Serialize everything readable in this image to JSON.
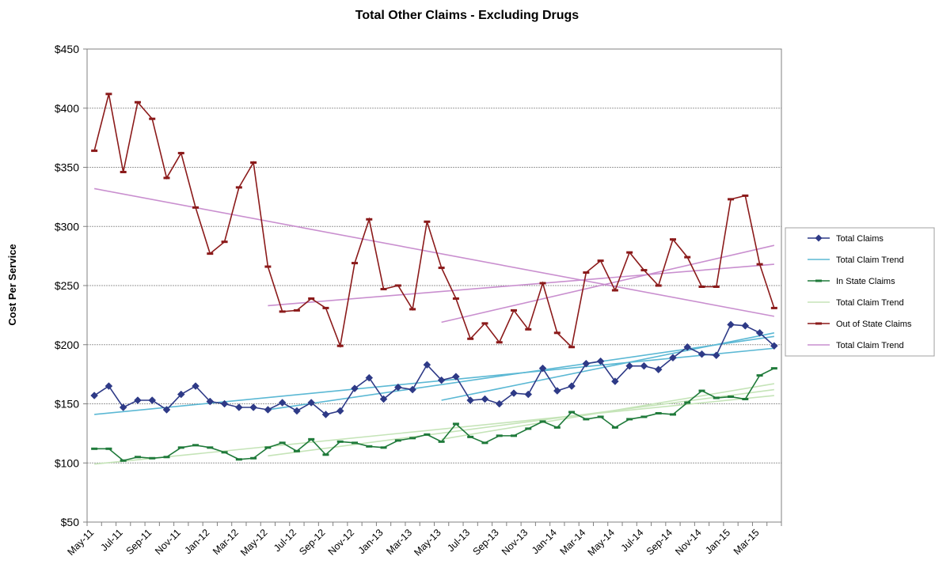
{
  "chart_data": {
    "type": "line",
    "title": "Total Other Claims - Excluding Drugs",
    "ylabel": "Cost Per Service",
    "xlabel": "",
    "ylim": [
      50,
      450
    ],
    "yticks": [
      "$450",
      "$400",
      "$350",
      "$300",
      "$250",
      "$200",
      "$150",
      "$100",
      "$50"
    ],
    "ytick_values": [
      450,
      400,
      350,
      300,
      250,
      200,
      150,
      100,
      50
    ],
    "grid": "horizontal",
    "legend_position": "right",
    "x": [
      "May-11",
      "Jun-11",
      "Jul-11",
      "Aug-11",
      "Sep-11",
      "Oct-11",
      "Nov-11",
      "Dec-11",
      "Jan-12",
      "Feb-12",
      "Mar-12",
      "Apr-12",
      "May-12",
      "Jun-12",
      "Jul-12",
      "Aug-12",
      "Sep-12",
      "Oct-12",
      "Nov-12",
      "Dec-12",
      "Jan-13",
      "Feb-13",
      "Mar-13",
      "Apr-13",
      "May-13",
      "Jun-13",
      "Jul-13",
      "Aug-13",
      "Sep-13",
      "Oct-13",
      "Nov-13",
      "Dec-13",
      "Jan-14",
      "Feb-14",
      "Mar-14",
      "Apr-14",
      "May-14",
      "Jun-14",
      "Jul-14",
      "Aug-14",
      "Sep-14",
      "Oct-14",
      "Nov-14",
      "Dec-14",
      "Jan-15",
      "Feb-15",
      "Mar-15",
      "Apr-15"
    ],
    "x_tick_labels": [
      "May-11",
      "Jul-11",
      "Sep-11",
      "Nov-11",
      "Jan-12",
      "Mar-12",
      "May-12",
      "Jul-12",
      "Sep-12",
      "Nov-12",
      "Jan-13",
      "Mar-13",
      "May-13",
      "Jul-13",
      "Sep-13",
      "Nov-13",
      "Jan-14",
      "Mar-14",
      "May-14",
      "Jul-14",
      "Sep-14",
      "Nov-14",
      "Jan-15",
      "Mar-15"
    ],
    "series": [
      {
        "name": "Total Claims",
        "color": "#2e3a87",
        "marker": "diamond",
        "values": [
          157,
          165,
          147,
          153,
          153,
          145,
          158,
          165,
          152,
          150,
          147,
          147,
          145,
          151,
          144,
          151,
          141,
          144,
          163,
          172,
          154,
          164,
          162,
          183,
          170,
          173,
          153,
          154,
          150,
          159,
          158,
          180,
          161,
          165,
          184,
          186,
          169,
          182,
          182,
          179,
          189,
          198,
          192,
          191,
          217,
          216,
          210,
          199
        ]
      },
      {
        "name": "In State Claims",
        "color": "#1f7a3a",
        "marker": "dash",
        "values": [
          112,
          112,
          102,
          105,
          104,
          105,
          113,
          115,
          113,
          109,
          103,
          104,
          113,
          117,
          110,
          120,
          107,
          118,
          117,
          114,
          113,
          119,
          121,
          124,
          118,
          133,
          122,
          117,
          123,
          123,
          129,
          135,
          130,
          143,
          137,
          139,
          130,
          137,
          139,
          142,
          141,
          151,
          161,
          155,
          156,
          154,
          174,
          180
        ]
      },
      {
        "name": "Out of State Claims",
        "color": "#8b1a1a",
        "marker": "dash",
        "values": [
          364,
          412,
          346,
          405,
          391,
          341,
          362,
          316,
          277,
          287,
          333,
          354,
          266,
          228,
          229,
          239,
          231,
          199,
          269,
          306,
          247,
          250,
          230,
          304,
          265,
          239,
          205,
          218,
          202,
          229,
          213,
          252,
          210,
          198,
          261,
          271,
          246,
          278,
          263,
          250,
          289,
          274,
          249,
          249,
          323,
          326,
          268,
          231
        ]
      }
    ],
    "trends": [
      {
        "name": "Total Claim Trend",
        "color": "#5bb8d4",
        "segments": [
          [
            0,
            141,
            47,
            197
          ],
          [
            12,
            145,
            47,
            207
          ],
          [
            24,
            153,
            47,
            210
          ]
        ]
      },
      {
        "name": "Total Claim Trend",
        "color": "#c5e4b8",
        "segments": [
          [
            0,
            99,
            47,
            157
          ],
          [
            12,
            106,
            47,
            162
          ],
          [
            24,
            120,
            47,
            167
          ]
        ]
      },
      {
        "name": "Total Claim Trend",
        "color": "#c98fcf",
        "segments": [
          [
            0,
            332,
            47,
            224
          ],
          [
            12,
            233,
            47,
            268
          ],
          [
            24,
            219,
            47,
            284
          ]
        ]
      }
    ],
    "legend": [
      {
        "label": "Total Claims",
        "color": "#2e3a87",
        "marker": "diamond"
      },
      {
        "label": "Total Claim Trend",
        "color": "#5bb8d4",
        "marker": "none"
      },
      {
        "label": "In State Claims",
        "color": "#1f7a3a",
        "marker": "dash"
      },
      {
        "label": "Total Claim Trend",
        "color": "#c5e4b8",
        "marker": "none"
      },
      {
        "label": "Out of State Claims",
        "color": "#8b1a1a",
        "marker": "dash"
      },
      {
        "label": "Total Claim Trend",
        "color": "#c98fcf",
        "marker": "none"
      }
    ]
  }
}
